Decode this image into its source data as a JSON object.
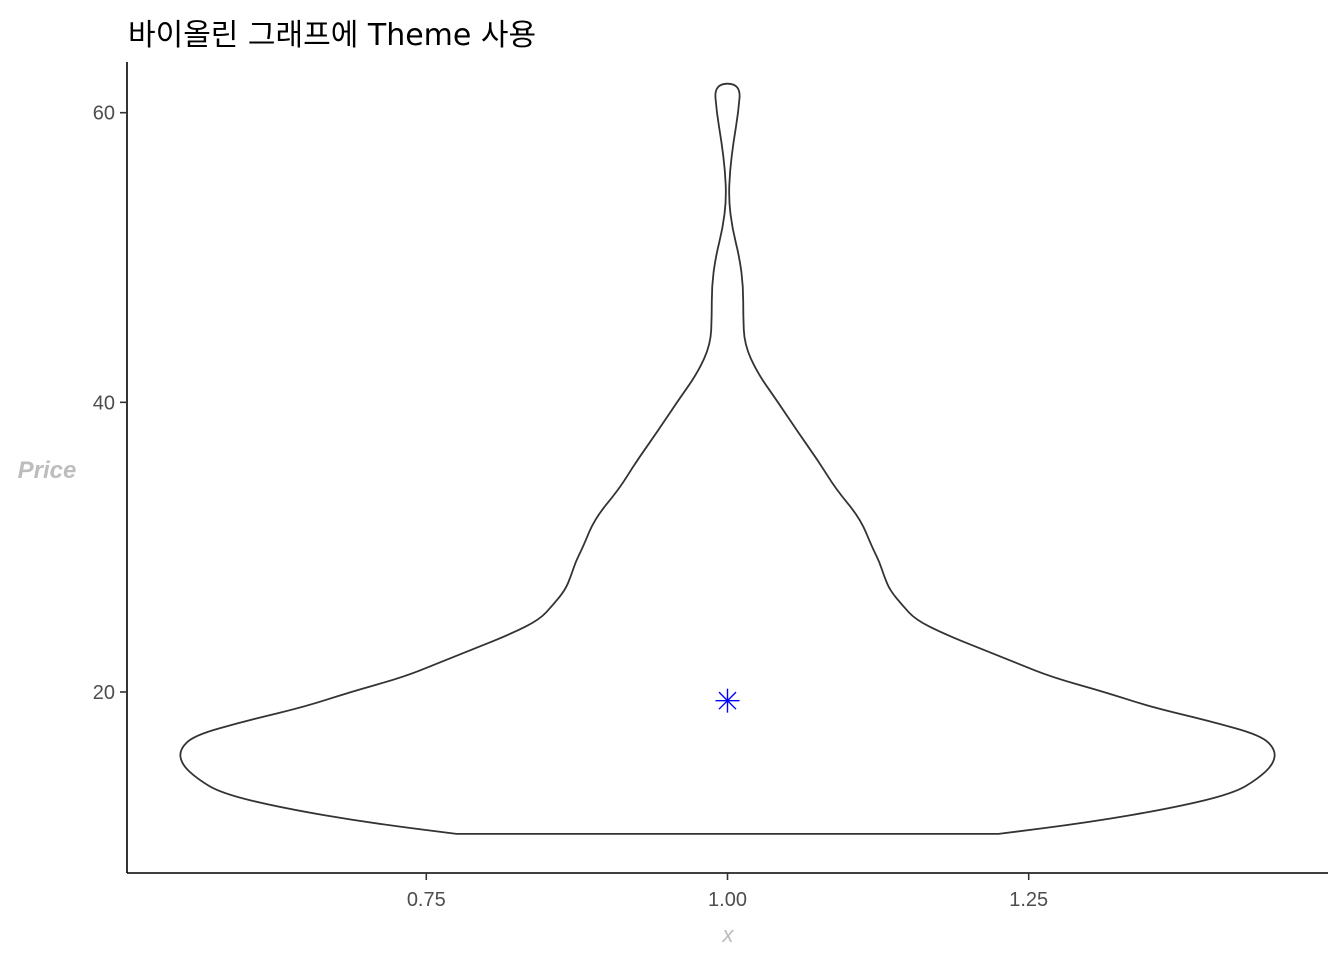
{
  "chart_data": {
    "type": "violin",
    "title": "바이올린 그래프에 Theme 사용",
    "xlabel": "x",
    "ylabel": "Price",
    "x": 1.0,
    "xlim": [
      0.5016,
      1.4984
    ],
    "ylim": [
      7.5,
      63.5
    ],
    "x_ticks": [
      0.75,
      1.0,
      1.25
    ],
    "x_tick_labels": [
      "0.75",
      "1.00",
      "1.25"
    ],
    "y_ticks": [
      20,
      40,
      60
    ],
    "y_tick_labels": [
      "20",
      "40",
      "60"
    ],
    "grid": false,
    "y_min": 10.2,
    "y_max": 62.0,
    "density_profile": [
      {
        "y": 10.2,
        "half_width": 0.225
      },
      {
        "y": 11.0,
        "half_width": 0.3
      },
      {
        "y": 12.0,
        "half_width": 0.37
      },
      {
        "y": 13.0,
        "half_width": 0.42
      },
      {
        "y": 14.0,
        "half_width": 0.44
      },
      {
        "y": 15.0,
        "half_width": 0.453
      },
      {
        "y": 16.0,
        "half_width": 0.455
      },
      {
        "y": 17.0,
        "half_width": 0.443
      },
      {
        "y": 18.0,
        "half_width": 0.4
      },
      {
        "y": 19.0,
        "half_width": 0.35
      },
      {
        "y": 20.0,
        "half_width": 0.313
      },
      {
        "y": 21.0,
        "half_width": 0.27
      },
      {
        "y": 22.0,
        "half_width": 0.24
      },
      {
        "y": 23.0,
        "half_width": 0.21
      },
      {
        "y": 24.0,
        "half_width": 0.18
      },
      {
        "y": 25.0,
        "half_width": 0.156
      },
      {
        "y": 26.0,
        "half_width": 0.145
      },
      {
        "y": 27.0,
        "half_width": 0.135
      },
      {
        "y": 28.0,
        "half_width": 0.13
      },
      {
        "y": 29.0,
        "half_width": 0.126
      },
      {
        "y": 30.0,
        "half_width": 0.12
      },
      {
        "y": 32.0,
        "half_width": 0.11
      },
      {
        "y": 34.0,
        "half_width": 0.09
      },
      {
        "y": 36.0,
        "half_width": 0.075
      },
      {
        "y": 38.0,
        "half_width": 0.058
      },
      {
        "y": 40.0,
        "half_width": 0.042
      },
      {
        "y": 42.0,
        "half_width": 0.025
      },
      {
        "y": 44.0,
        "half_width": 0.014
      },
      {
        "y": 46.0,
        "half_width": 0.013
      },
      {
        "y": 48.0,
        "half_width": 0.013
      },
      {
        "y": 50.0,
        "half_width": 0.01
      },
      {
        "y": 52.0,
        "half_width": 0.004
      },
      {
        "y": 54.0,
        "half_width": 0.001
      },
      {
        "y": 56.0,
        "half_width": 0.002
      },
      {
        "y": 58.0,
        "half_width": 0.005
      },
      {
        "y": 60.0,
        "half_width": 0.009
      },
      {
        "y": 62.0,
        "half_width": 0.011
      }
    ],
    "mean_marker": {
      "x": 1.0,
      "y": 19.4,
      "shape": "asterisk",
      "color": "#0000ff"
    },
    "colors": {
      "outline": "#333333",
      "fill": "#ffffff",
      "axis": "#000000"
    }
  }
}
